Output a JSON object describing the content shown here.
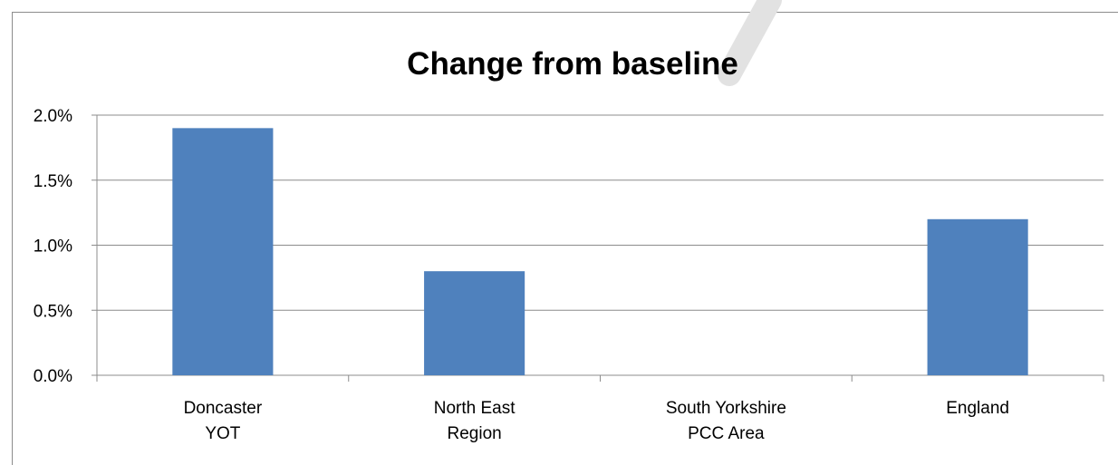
{
  "chart_data": {
    "type": "bar",
    "title": "Change from baseline",
    "xlabel": "",
    "ylabel": "",
    "categories": [
      [
        "Doncaster",
        "YOT"
      ],
      [
        "North East",
        "Region"
      ],
      [
        "South Yorkshire",
        "PCC Area"
      ],
      [
        "England"
      ]
    ],
    "values": [
      1.9,
      0.8,
      0.0,
      1.2
    ],
    "y_ticks": [
      "0.0%",
      "0.5%",
      "1.0%",
      "1.5%",
      "2.0%"
    ],
    "ylim": [
      0,
      2.0
    ],
    "y_unit": "%",
    "grid": true,
    "legend": "none",
    "colors": {
      "bar": "#4F81BD",
      "grid": "#8c8c8c",
      "text": "#000000"
    }
  }
}
